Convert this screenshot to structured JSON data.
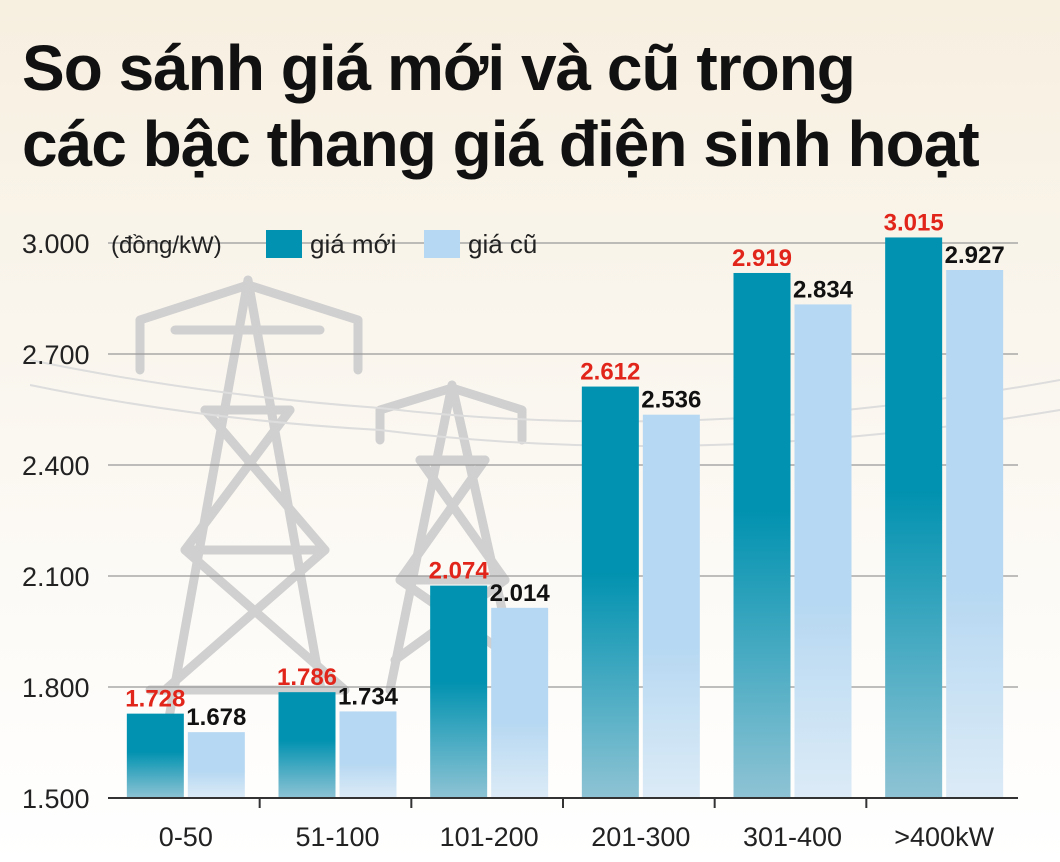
{
  "colors": {
    "new": "#0092b0",
    "old": "#b6d8f2",
    "new_label": "#e1251b",
    "old_label": "#111111",
    "grid": "#999999",
    "axis": "#333333",
    "tower": "#cfcfcf"
  },
  "chart_data": {
    "type": "bar",
    "title": "So sánh giá mới và cũ trong các bậc thang giá điện sinh hoạt",
    "title_lines": [
      "So sánh giá mới và cũ trong",
      "các bậc thang giá điện sinh hoạt"
    ],
    "ylabel": "(đồng/kW)",
    "ylim": [
      1500,
      3000
    ],
    "yticks": [
      1500,
      1800,
      2100,
      2400,
      2700,
      3000
    ],
    "ytick_labels": [
      "1.500",
      "1.800",
      "2.100",
      "2.400",
      "2.700",
      "3.000"
    ],
    "categories": [
      "0-50",
      "51-100",
      "101-200",
      "201-300",
      "301-400",
      ">400kW"
    ],
    "series": [
      {
        "name": "giá mới",
        "values": [
          1728,
          1786,
          2074,
          2612,
          2919,
          3015
        ],
        "labels": [
          "1.728",
          "1.786",
          "2.074",
          "2.612",
          "2.919",
          "3.015"
        ]
      },
      {
        "name": "giá cũ",
        "values": [
          1678,
          1734,
          2014,
          2536,
          2834,
          2927
        ],
        "labels": [
          "1.678",
          "1.734",
          "2.014",
          "2.536",
          "2.834",
          "2.927"
        ]
      }
    ],
    "grid": true,
    "legend_position": "top"
  }
}
